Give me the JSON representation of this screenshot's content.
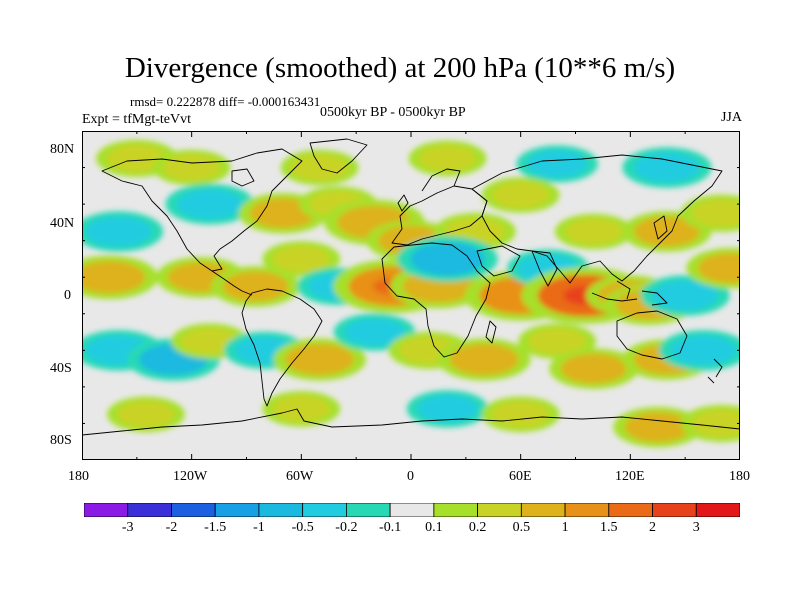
{
  "header": {
    "title": "Divergence (smoothed) at 200 hPa (10**6 m/s)",
    "stats": "rmsd= 0.222878 diff= -0.000163431",
    "experiment": "Expt = tfMgt-teVvt",
    "period": "0500kyr BP - 0500kyr BP",
    "season": "JJA"
  },
  "axes": {
    "lat_labels": [
      "80N",
      "40N",
      "0",
      "40S",
      "80S"
    ],
    "lon_labels": [
      "180",
      "120W",
      "60W",
      "0",
      "60E",
      "120E",
      "180"
    ]
  },
  "colorbar": {
    "labels": [
      "-3",
      "-2",
      "-1.5",
      "-1",
      "-0.5",
      "-0.2",
      "-0.1",
      "0.1",
      "0.2",
      "0.5",
      "1",
      "1.5",
      "2",
      "3"
    ],
    "colors": [
      "#8b1ae6",
      "#3a2fd8",
      "#1c5fe0",
      "#18a0e6",
      "#1ab9e0",
      "#21cce0",
      "#26d9b4",
      "#e8e8e8",
      "#a6e02a",
      "#c9d326",
      "#ddb21d",
      "#e89119",
      "#ea6a17",
      "#e8421a",
      "#e3161a"
    ]
  },
  "map": {
    "background": "#e8e8e8",
    "features": [
      {
        "lon": -150,
        "lat": 75,
        "value": 0.3
      },
      {
        "lon": -120,
        "lat": 70,
        "value": 0.2
      },
      {
        "lon": -50,
        "lat": 70,
        "value": 0.2
      },
      {
        "lon": 20,
        "lat": 75,
        "value": 0.2
      },
      {
        "lon": 80,
        "lat": 72,
        "value": -0.3
      },
      {
        "lon": 140,
        "lat": 70,
        "value": -0.5
      },
      {
        "lon": -160,
        "lat": 35,
        "value": -0.5
      },
      {
        "lon": -110,
        "lat": 50,
        "value": -0.5
      },
      {
        "lon": -70,
        "lat": 45,
        "value": 0.5
      },
      {
        "lon": -40,
        "lat": 50,
        "value": 0.2
      },
      {
        "lon": -20,
        "lat": 40,
        "value": 0.8
      },
      {
        "lon": 0,
        "lat": 30,
        "value": 0.5
      },
      {
        "lon": 35,
        "lat": 35,
        "value": 0.3
      },
      {
        "lon": 60,
        "lat": 55,
        "value": 0.2
      },
      {
        "lon": 100,
        "lat": 35,
        "value": 0.2
      },
      {
        "lon": 140,
        "lat": 35,
        "value": 0.5
      },
      {
        "lon": 170,
        "lat": 45,
        "value": 0.3
      },
      {
        "lon": -165,
        "lat": 10,
        "value": 0.7
      },
      {
        "lon": -115,
        "lat": 10,
        "value": 0.5
      },
      {
        "lon": -85,
        "lat": 5,
        "value": 0.5
      },
      {
        "lon": -60,
        "lat": 20,
        "value": 0.2
      },
      {
        "lon": -40,
        "lat": 5,
        "value": -0.3
      },
      {
        "lon": -10,
        "lat": 5,
        "value": 1.3
      },
      {
        "lon": 15,
        "lat": 5,
        "value": 0.7
      },
      {
        "lon": 20,
        "lat": 20,
        "value": -0.8
      },
      {
        "lon": 60,
        "lat": 0,
        "value": 1.1
      },
      {
        "lon": 75,
        "lat": 15,
        "value": -0.3
      },
      {
        "lon": 95,
        "lat": 0,
        "value": 1.6
      },
      {
        "lon": 120,
        "lat": 0,
        "value": 0.5
      },
      {
        "lon": 130,
        "lat": -5,
        "value": 0.5
      },
      {
        "lon": 150,
        "lat": 0,
        "value": -0.5
      },
      {
        "lon": 175,
        "lat": 15,
        "value": 0.5
      },
      {
        "lon": -160,
        "lat": -30,
        "value": -0.5
      },
      {
        "lon": -130,
        "lat": -35,
        "value": -0.6
      },
      {
        "lon": -110,
        "lat": -25,
        "value": 0.2
      },
      {
        "lon": -80,
        "lat": -30,
        "value": -0.3
      },
      {
        "lon": -50,
        "lat": -35,
        "value": 0.6
      },
      {
        "lon": -20,
        "lat": -20,
        "value": -0.3
      },
      {
        "lon": 10,
        "lat": -30,
        "value": 0.3
      },
      {
        "lon": 40,
        "lat": -35,
        "value": 0.6
      },
      {
        "lon": 80,
        "lat": -25,
        "value": 0.2
      },
      {
        "lon": 100,
        "lat": -40,
        "value": 0.5
      },
      {
        "lon": 140,
        "lat": -35,
        "value": 0.5
      },
      {
        "lon": 160,
        "lat": -30,
        "value": -0.5
      },
      {
        "lon": -145,
        "lat": -65,
        "value": 0.2
      },
      {
        "lon": -60,
        "lat": -62,
        "value": 0.2
      },
      {
        "lon": 20,
        "lat": -62,
        "value": -0.3
      },
      {
        "lon": 60,
        "lat": -65,
        "value": 0.2
      },
      {
        "lon": 135,
        "lat": -72,
        "value": 0.5
      },
      {
        "lon": 170,
        "lat": -70,
        "value": 0.3
      }
    ]
  }
}
